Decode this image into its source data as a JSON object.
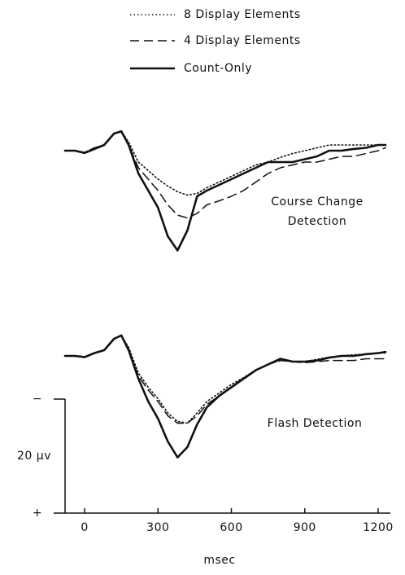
{
  "chart_data": [
    {
      "type": "line",
      "annotation": [
        "Course Change",
        "Detection"
      ],
      "xlim": [
        -80,
        1250
      ],
      "x": [
        -80,
        -40,
        0,
        40,
        80,
        120,
        150,
        180,
        220,
        260,
        300,
        340,
        380,
        420,
        460,
        500,
        550,
        600,
        650,
        700,
        750,
        800,
        850,
        900,
        950,
        1000,
        1050,
        1100,
        1150,
        1200,
        1230
      ],
      "series": [
        {
          "name": "8 Display Elements",
          "style": "dotted",
          "color": "#111",
          "values": [
            0,
            0,
            0.3,
            -0.5,
            -1,
            -3,
            -3.4,
            -1.5,
            2,
            3.5,
            5,
            6.2,
            7.2,
            7.8,
            7.5,
            6.5,
            5.5,
            4.5,
            3.5,
            2.5,
            2,
            1.2,
            0.5,
            0,
            -0.5,
            -1,
            -1,
            -1,
            -1,
            -1,
            -1
          ]
        },
        {
          "name": "4 Display Elements",
          "style": "dashed",
          "color": "#111",
          "values": [
            0,
            0,
            0.3,
            -0.5,
            -1,
            -3,
            -3.4,
            -1,
            3,
            5,
            7,
            9.5,
            11.3,
            11.8,
            11,
            9.5,
            8.8,
            8,
            7,
            5.5,
            4,
            3,
            2.5,
            2,
            2,
            1.5,
            1,
            1,
            0.5,
            0,
            -0.5
          ]
        },
        {
          "name": "Count-Only",
          "style": "solid",
          "color": "#111",
          "values": [
            0,
            0,
            0.4,
            -0.3,
            -1,
            -3,
            -3.4,
            -1,
            4,
            7,
            10,
            15,
            17.5,
            14,
            8,
            7,
            6,
            5,
            4,
            3,
            2,
            2,
            2,
            1.5,
            1,
            0,
            0,
            -0.3,
            -0.5,
            -1,
            -1
          ]
        }
      ]
    },
    {
      "type": "line",
      "annotation": [
        "Flash Detection"
      ],
      "xlim": [
        -80,
        1250
      ],
      "xticks": [
        0,
        300,
        600,
        900,
        1200
      ],
      "xlabel": "msec",
      "scale_bar": {
        "value": 20,
        "label": "20 µv",
        "top": "−",
        "bottom": "+"
      },
      "x": [
        -80,
        -40,
        0,
        40,
        80,
        120,
        150,
        180,
        220,
        260,
        300,
        340,
        380,
        420,
        460,
        500,
        550,
        600,
        650,
        700,
        750,
        800,
        850,
        900,
        950,
        1000,
        1050,
        1100,
        1150,
        1200,
        1230
      ],
      "series": [
        {
          "style": "dotted",
          "color": "#111",
          "values": [
            0,
            0,
            0.2,
            -0.5,
            -1,
            -3,
            -3.6,
            -1.5,
            3,
            5.5,
            7.5,
            10,
            11.5,
            11.8,
            10,
            8,
            6.5,
            5,
            3.8,
            2.5,
            1.5,
            0.8,
            1,
            1,
            0.6,
            0.2,
            0,
            -0.2,
            -0.3,
            -0.5,
            -0.5
          ]
        },
        {
          "style": "dashed",
          "color": "#111",
          "values": [
            0,
            0,
            0.2,
            -0.5,
            -1,
            -3,
            -3.6,
            -1,
            3.5,
            6,
            8,
            10.5,
            11.8,
            11.8,
            10.5,
            8.5,
            7,
            5.5,
            4,
            2.5,
            1.5,
            0.8,
            1,
            1.2,
            1,
            0.8,
            0.8,
            0.8,
            0.5,
            0.5,
            0.5
          ]
        },
        {
          "style": "solid",
          "color": "#111",
          "values": [
            0,
            0,
            0.2,
            -0.5,
            -1,
            -3,
            -3.6,
            -1,
            4,
            8,
            11,
            15,
            17.8,
            16,
            12,
            9,
            7,
            5.5,
            4,
            2.5,
            1.5,
            0.5,
            1,
            1,
            0.8,
            0.3,
            0,
            0,
            -0.3,
            -0.5,
            -0.7
          ]
        }
      ]
    }
  ]
}
